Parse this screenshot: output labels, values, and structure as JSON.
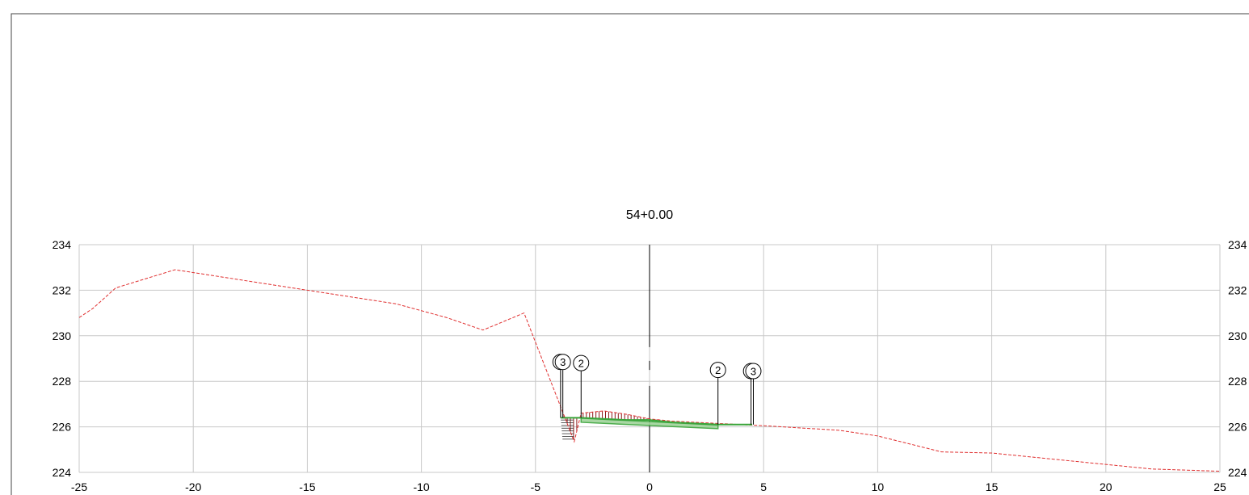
{
  "section": {
    "title": "54+0.00"
  },
  "chart_data": {
    "type": "line",
    "title": "54+0.00",
    "xlabel": "",
    "ylabel": "",
    "xlim": [
      -25,
      25
    ],
    "ylim": [
      224,
      234
    ],
    "x_ticks": [
      -25,
      -20,
      -15,
      -10,
      -5,
      0,
      5,
      10,
      15,
      20,
      25
    ],
    "x_tick_labels": [
      "-25",
      "-20",
      "-15",
      "-10",
      "-5",
      "0",
      "5",
      "10",
      "15",
      "20",
      "25"
    ],
    "y_ticks": [
      224,
      226,
      228,
      230,
      232,
      234
    ],
    "y_tick_labels": [
      "224",
      "226",
      "228",
      "230",
      "232",
      "234"
    ],
    "grid": true,
    "colors": {
      "ground": "#e03030",
      "grid": "#c8c8c8",
      "design": "#3aa53a",
      "hatch": "#8b1a1a",
      "axis": "#000000"
    },
    "series": [
      {
        "style": "dashed",
        "x": [
          -25,
          -24.4,
          -23.4,
          -20.8,
          -15,
          -11.1,
          -8.9,
          -7.3,
          -5.5,
          -3.3,
          -3.0,
          -2.0,
          -1.0,
          0,
          1,
          3,
          5,
          8.3,
          10,
          12.8,
          15,
          17,
          20,
          22,
          25
        ],
        "y": [
          230.8,
          231.2,
          232.1,
          232.9,
          232.0,
          231.4,
          230.8,
          230.25,
          231.0,
          225.35,
          226.6,
          226.7,
          226.55,
          226.35,
          226.25,
          226.15,
          226.05,
          225.85,
          225.6,
          224.9,
          224.85,
          224.65,
          224.35,
          224.15,
          224.05
        ]
      },
      {
        "style": "solid",
        "x": [
          -3.9,
          -3.0,
          -1.0,
          0,
          1,
          3,
          4.5
        ],
        "y": [
          226.4,
          226.4,
          226.3,
          226.3,
          226.2,
          226.1,
          226.1
        ]
      }
    ],
    "points": [
      {
        "x": -3.9,
        "y": 226.4,
        "marker_y": 228.85,
        "label": "3"
      },
      {
        "x": -3.8,
        "y": 226.4,
        "marker_y": 228.85,
        "label": "3"
      },
      {
        "x": -3.0,
        "y": 226.4,
        "marker_y": 228.8,
        "label": "2"
      },
      {
        "x": 3.0,
        "y": 226.1,
        "marker_y": 228.5,
        "label": "2"
      },
      {
        "x": 4.45,
        "y": 226.1,
        "marker_y": 228.45,
        "label": "3"
      },
      {
        "x": 4.55,
        "y": 226.1,
        "marker_y": 228.45,
        "label": "3"
      }
    ]
  }
}
